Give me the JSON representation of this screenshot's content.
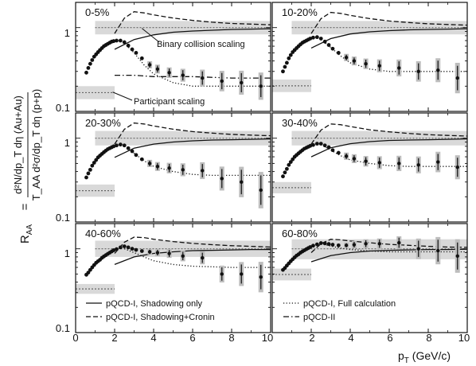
{
  "chart_data": {
    "type": "scatter",
    "layout": "3x2 grid of panels sharing axes",
    "x_axis": {
      "label": "p",
      "label_sub": "T",
      "label_unit": " (GeV/c)",
      "range": [
        0,
        10
      ],
      "ticks": [
        0,
        2,
        4,
        6,
        8,
        10
      ],
      "tick_labels_left": [
        "0",
        "2",
        "4",
        "6",
        "8",
        "10"
      ],
      "tick_labels_right": [
        "2",
        "4",
        "6",
        "8",
        "10"
      ]
    },
    "y_axis": {
      "scale": "log",
      "range": [
        0.1,
        2.0
      ],
      "ticks": [
        0.1,
        1
      ],
      "tick_labels": [
        "0.1",
        "1"
      ],
      "label_lhs": "R",
      "label_lhs_sub": "AA",
      "label_eq": "=",
      "numerator": "d²N/dp_T dη   (Au+Au)",
      "denominator": "T_AA d²σ/dp_T dη   (p+p)"
    },
    "annotations": {
      "binary": "Binary collision scaling",
      "participant": "Participant scaling"
    },
    "legend": [
      {
        "label": "pQCD-I, Shadowing only",
        "style": "solid"
      },
      {
        "label": "pQCD-I, Shadowing+Cronin",
        "style": "dashed"
      },
      {
        "label": "pQCD-I, Full calculation",
        "style": "dotted"
      },
      {
        "label": "pQCD-II",
        "style": "dashdot"
      }
    ],
    "panels": [
      {
        "title": "0-5%",
        "binary_band": [
          0.83,
          1.2
        ],
        "participant_band": [
          0.14,
          0.2
        ],
        "points": [
          [
            0.55,
            0.29
          ],
          [
            0.65,
            0.33
          ],
          [
            0.75,
            0.37
          ],
          [
            0.85,
            0.41
          ],
          [
            0.95,
            0.45
          ],
          [
            1.05,
            0.48
          ],
          [
            1.15,
            0.51
          ],
          [
            1.25,
            0.54
          ],
          [
            1.35,
            0.57
          ],
          [
            1.45,
            0.6
          ],
          [
            1.55,
            0.62
          ],
          [
            1.65,
            0.64
          ],
          [
            1.75,
            0.66
          ],
          [
            1.85,
            0.68
          ],
          [
            1.95,
            0.69
          ],
          [
            2.1,
            0.7
          ],
          [
            2.3,
            0.7
          ],
          [
            2.5,
            0.67
          ],
          [
            2.7,
            0.61
          ],
          [
            2.9,
            0.55
          ],
          [
            3.1,
            0.5
          ],
          [
            3.4,
            0.43
          ],
          [
            3.8,
            0.36
          ],
          [
            4.2,
            0.32
          ],
          [
            4.8,
            0.29
          ],
          [
            5.5,
            0.27
          ],
          [
            6.5,
            0.25
          ],
          [
            7.5,
            0.23
          ],
          [
            8.5,
            0.22
          ],
          [
            9.5,
            0.2
          ]
        ],
        "errors_from_index": 22,
        "rel_err": [
          0.08,
          0.1,
          0.12,
          0.15,
          0.2,
          0.25,
          0.3,
          0.35
        ]
      },
      {
        "title": "10-20%",
        "binary_band": [
          0.83,
          1.2
        ],
        "participant_band": [
          0.17,
          0.24
        ],
        "points": [
          [
            0.55,
            0.3
          ],
          [
            0.65,
            0.34
          ],
          [
            0.75,
            0.38
          ],
          [
            0.85,
            0.43
          ],
          [
            0.95,
            0.47
          ],
          [
            1.05,
            0.51
          ],
          [
            1.15,
            0.54
          ],
          [
            1.25,
            0.57
          ],
          [
            1.35,
            0.6
          ],
          [
            1.45,
            0.63
          ],
          [
            1.55,
            0.66
          ],
          [
            1.65,
            0.68
          ],
          [
            1.75,
            0.7
          ],
          [
            1.85,
            0.72
          ],
          [
            1.95,
            0.74
          ],
          [
            2.1,
            0.76
          ],
          [
            2.3,
            0.77
          ],
          [
            2.5,
            0.74
          ],
          [
            2.7,
            0.68
          ],
          [
            2.9,
            0.62
          ],
          [
            3.1,
            0.56
          ],
          [
            3.4,
            0.5
          ],
          [
            3.8,
            0.44
          ],
          [
            4.2,
            0.4
          ],
          [
            4.8,
            0.37
          ],
          [
            5.5,
            0.35
          ],
          [
            6.5,
            0.33
          ],
          [
            7.5,
            0.3
          ],
          [
            8.5,
            0.31
          ],
          [
            9.5,
            0.25
          ]
        ],
        "errors_from_index": 22,
        "rel_err": [
          0.08,
          0.1,
          0.12,
          0.15,
          0.2,
          0.25,
          0.3,
          0.4
        ]
      },
      {
        "title": "20-30%",
        "binary_band": [
          0.82,
          1.22
        ],
        "participant_band": [
          0.2,
          0.28
        ],
        "points": [
          [
            0.55,
            0.34
          ],
          [
            0.65,
            0.38
          ],
          [
            0.75,
            0.42
          ],
          [
            0.85,
            0.47
          ],
          [
            0.95,
            0.51
          ],
          [
            1.05,
            0.55
          ],
          [
            1.15,
            0.59
          ],
          [
            1.25,
            0.62
          ],
          [
            1.35,
            0.65
          ],
          [
            1.45,
            0.68
          ],
          [
            1.55,
            0.71
          ],
          [
            1.65,
            0.74
          ],
          [
            1.75,
            0.76
          ],
          [
            1.85,
            0.78
          ],
          [
            1.95,
            0.8
          ],
          [
            2.1,
            0.82
          ],
          [
            2.3,
            0.84
          ],
          [
            2.5,
            0.82
          ],
          [
            2.7,
            0.76
          ],
          [
            2.9,
            0.7
          ],
          [
            3.1,
            0.63
          ],
          [
            3.4,
            0.56
          ],
          [
            3.8,
            0.5
          ],
          [
            4.2,
            0.46
          ],
          [
            4.8,
            0.44
          ],
          [
            5.5,
            0.42
          ],
          [
            6.5,
            0.41
          ],
          [
            7.5,
            0.33
          ],
          [
            8.5,
            0.3
          ],
          [
            9.5,
            0.24
          ]
        ],
        "errors_from_index": 22,
        "rel_err": [
          0.08,
          0.1,
          0.12,
          0.15,
          0.2,
          0.3,
          0.4,
          0.5
        ]
      },
      {
        "title": "30-40%",
        "binary_band": [
          0.82,
          1.22
        ],
        "participant_band": [
          0.22,
          0.3
        ],
        "points": [
          [
            0.55,
            0.35
          ],
          [
            0.65,
            0.39
          ],
          [
            0.75,
            0.43
          ],
          [
            0.85,
            0.48
          ],
          [
            0.95,
            0.52
          ],
          [
            1.05,
            0.56
          ],
          [
            1.15,
            0.6
          ],
          [
            1.25,
            0.63
          ],
          [
            1.35,
            0.66
          ],
          [
            1.45,
            0.69
          ],
          [
            1.55,
            0.72
          ],
          [
            1.65,
            0.75
          ],
          [
            1.75,
            0.77
          ],
          [
            1.85,
            0.79
          ],
          [
            1.95,
            0.81
          ],
          [
            2.1,
            0.83
          ],
          [
            2.3,
            0.86
          ],
          [
            2.5,
            0.86
          ],
          [
            2.7,
            0.82
          ],
          [
            2.9,
            0.78
          ],
          [
            3.1,
            0.72
          ],
          [
            3.4,
            0.67
          ],
          [
            3.8,
            0.61
          ],
          [
            4.2,
            0.57
          ],
          [
            4.8,
            0.53
          ],
          [
            5.5,
            0.51
          ],
          [
            6.5,
            0.5
          ],
          [
            7.5,
            0.48
          ],
          [
            8.5,
            0.52
          ],
          [
            9.5,
            0.45
          ]
        ],
        "errors_from_index": 22,
        "rel_err": [
          0.08,
          0.1,
          0.12,
          0.15,
          0.18,
          0.2,
          0.25,
          0.3
        ]
      },
      {
        "title": "40-60%",
        "binary_band": [
          0.8,
          1.25
        ],
        "participant_band": [
          0.29,
          0.38
        ],
        "points": [
          [
            0.55,
            0.49
          ],
          [
            0.65,
            0.52
          ],
          [
            0.75,
            0.56
          ],
          [
            0.85,
            0.6
          ],
          [
            0.95,
            0.64
          ],
          [
            1.05,
            0.68
          ],
          [
            1.15,
            0.71
          ],
          [
            1.25,
            0.74
          ],
          [
            1.35,
            0.78
          ],
          [
            1.45,
            0.81
          ],
          [
            1.55,
            0.84
          ],
          [
            1.65,
            0.87
          ],
          [
            1.75,
            0.9
          ],
          [
            1.85,
            0.93
          ],
          [
            1.95,
            0.96
          ],
          [
            2.1,
            0.99
          ],
          [
            2.3,
            1.04
          ],
          [
            2.5,
            1.07
          ],
          [
            2.7,
            1.04
          ],
          [
            2.9,
            1.0
          ],
          [
            3.1,
            0.97
          ],
          [
            3.4,
            0.94
          ],
          [
            3.8,
            0.92
          ],
          [
            4.2,
            0.9
          ],
          [
            4.8,
            0.88
          ],
          [
            5.5,
            0.82
          ],
          [
            6.5,
            0.78
          ],
          [
            7.5,
            0.5
          ],
          [
            8.5,
            0.5
          ],
          [
            9.5,
            0.46
          ]
        ],
        "errors_from_index": 22,
        "rel_err": [
          0.06,
          0.08,
          0.1,
          0.12,
          0.15,
          0.2,
          0.3,
          0.4
        ]
      },
      {
        "title": "60-80%",
        "binary_band": [
          0.75,
          1.3
        ],
        "participant_band": [
          0.42,
          0.58
        ],
        "points": [
          [
            0.55,
            0.56
          ],
          [
            0.65,
            0.59
          ],
          [
            0.75,
            0.63
          ],
          [
            0.85,
            0.67
          ],
          [
            0.95,
            0.71
          ],
          [
            1.05,
            0.75
          ],
          [
            1.15,
            0.79
          ],
          [
            1.25,
            0.83
          ],
          [
            1.35,
            0.86
          ],
          [
            1.45,
            0.9
          ],
          [
            1.55,
            0.93
          ],
          [
            1.65,
            0.96
          ],
          [
            1.75,
            0.99
          ],
          [
            1.85,
            1.02
          ],
          [
            1.95,
            1.05
          ],
          [
            2.1,
            1.09
          ],
          [
            2.3,
            1.13
          ],
          [
            2.5,
            1.17
          ],
          [
            2.7,
            1.16
          ],
          [
            2.9,
            1.14
          ],
          [
            3.1,
            1.12
          ],
          [
            3.4,
            1.1
          ],
          [
            3.8,
            1.1
          ],
          [
            4.2,
            1.12
          ],
          [
            4.8,
            1.15
          ],
          [
            5.5,
            1.15
          ],
          [
            6.5,
            1.18
          ],
          [
            7.5,
            1.0
          ],
          [
            8.5,
            0.95
          ],
          [
            9.5,
            0.82
          ]
        ],
        "errors_from_index": 22,
        "rel_err": [
          0.06,
          0.08,
          0.1,
          0.12,
          0.15,
          0.25,
          0.35,
          0.45
        ]
      }
    ],
    "curves": [
      {
        "name": "pQCD-I, Shadowing only",
        "style": "solid",
        "x": [
          2.0,
          3.0,
          4.0,
          5.0,
          6.0,
          7.0,
          8.0,
          9.0,
          10.0
        ],
        "by_panel": [
          [
            0.55,
            0.72,
            0.82,
            0.88,
            0.91,
            0.93,
            0.95,
            0.96,
            0.97
          ],
          [
            0.57,
            0.74,
            0.84,
            0.89,
            0.92,
            0.94,
            0.95,
            0.96,
            0.97
          ],
          [
            0.59,
            0.76,
            0.85,
            0.9,
            0.93,
            0.95,
            0.96,
            0.97,
            0.98
          ],
          [
            0.6,
            0.77,
            0.86,
            0.91,
            0.94,
            0.95,
            0.96,
            0.97,
            0.98
          ],
          [
            0.65,
            0.8,
            0.88,
            0.92,
            0.95,
            0.96,
            0.97,
            0.98,
            0.98
          ],
          [
            0.7,
            0.83,
            0.9,
            0.94,
            0.96,
            0.97,
            0.98,
            0.98,
            0.99
          ]
        ]
      },
      {
        "name": "pQCD-I, Shadowing+Cronin",
        "style": "dashed",
        "x": [
          2.0,
          2.5,
          3.0,
          3.5,
          4.0,
          5.0,
          6.0,
          7.0,
          8.0,
          9.0,
          10.0
        ],
        "by_panel": [
          [
            0.85,
            1.3,
            1.55,
            1.5,
            1.42,
            1.3,
            1.22,
            1.16,
            1.12,
            1.1,
            1.08
          ],
          [
            0.85,
            1.28,
            1.52,
            1.48,
            1.4,
            1.28,
            1.2,
            1.15,
            1.11,
            1.09,
            1.07
          ],
          [
            0.85,
            1.28,
            1.52,
            1.48,
            1.4,
            1.28,
            1.2,
            1.15,
            1.11,
            1.09,
            1.07
          ],
          [
            0.85,
            1.25,
            1.48,
            1.45,
            1.38,
            1.26,
            1.19,
            1.14,
            1.1,
            1.08,
            1.06
          ],
          [
            0.88,
            1.2,
            1.38,
            1.36,
            1.3,
            1.22,
            1.16,
            1.12,
            1.09,
            1.07,
            1.05
          ],
          [
            0.9,
            1.15,
            1.3,
            1.28,
            1.24,
            1.18,
            1.13,
            1.1,
            1.07,
            1.05,
            1.04
          ]
        ]
      },
      {
        "name": "pQCD-I, Full calculation",
        "style": "dotted",
        "x": [
          2.5,
          3.0,
          3.5,
          4.0,
          5.0,
          6.0,
          7.0,
          8.0,
          9.0,
          10.0
        ],
        "by_panel": [
          [
            0.65,
            0.5,
            0.36,
            0.28,
            0.22,
            0.2,
            0.2,
            0.2,
            0.2,
            0.2
          ],
          [
            0.72,
            0.58,
            0.46,
            0.38,
            0.32,
            0.3,
            0.3,
            0.3,
            0.3,
            0.3
          ],
          [
            0.8,
            0.66,
            0.54,
            0.46,
            0.4,
            0.37,
            0.36,
            0.36,
            0.36,
            0.36
          ],
          [
            0.84,
            0.72,
            0.62,
            0.55,
            0.5,
            0.47,
            0.46,
            0.46,
            0.46,
            0.46
          ],
          [
            1.0,
            0.9,
            0.8,
            0.72,
            0.65,
            0.62,
            0.61,
            0.6,
            0.6,
            0.6
          ],
          [
            1.15,
            1.08,
            1.02,
            0.98,
            0.94,
            0.92,
            0.92,
            0.92,
            0.92,
            0.92
          ]
        ]
      },
      {
        "name": "pQCD-II",
        "style": "dashdot",
        "x": [
          2.0,
          3.0,
          4.0,
          6.0,
          8.0,
          10.0
        ],
        "by_panel": [
          [
            0.27,
            0.27,
            0.26,
            0.26,
            0.25,
            0.25
          ],
          null,
          null,
          null,
          null,
          null
        ]
      }
    ]
  }
}
